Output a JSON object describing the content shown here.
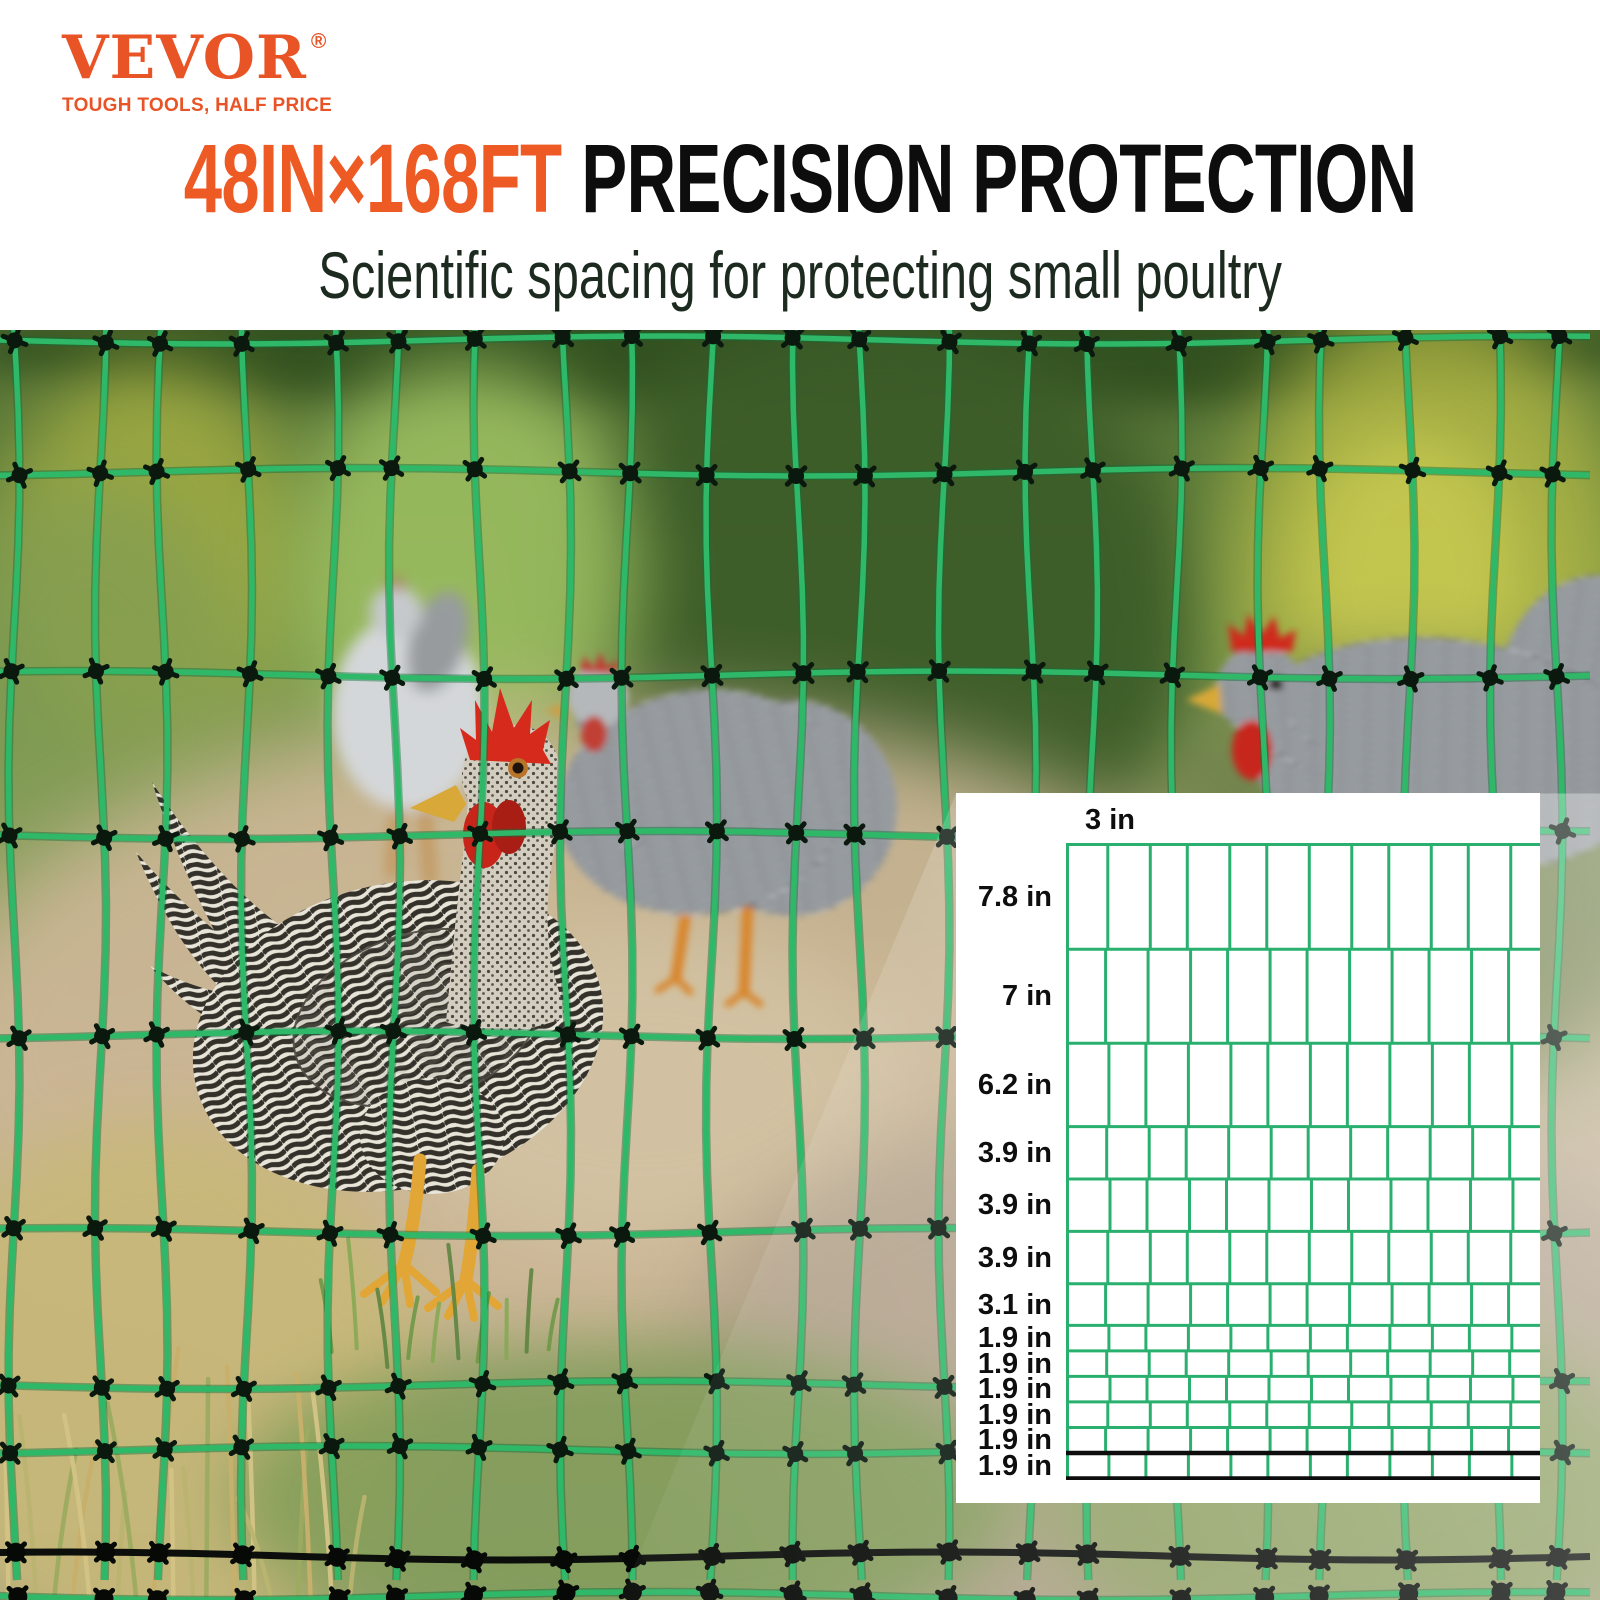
{
  "brand": {
    "name": "VEVOR",
    "registered": "®",
    "tagline": "TOUGH TOOLS, HALF PRICE",
    "color": "#E95426"
  },
  "headline": {
    "highlight": "48IN×168FT",
    "rest": "PRECISION PROTECTION",
    "highlight_color": "#EE5A24",
    "rest_color": "#0D0D0D"
  },
  "subtitle": {
    "text": "Scientific spacing for protecting small poultry",
    "color": "#1D2A1F"
  },
  "diagram": {
    "top_spacing_label": "3 in",
    "row_labels": [
      "7.8 in",
      "7 in",
      "6.2 in",
      "3.9 in",
      "3.9 in",
      "3.9 in",
      "3.1 in",
      "1.9 in",
      "1.9 in",
      "1.9 in",
      "1.9 in",
      "1.9 in",
      "1.9 in"
    ],
    "grid_color": "#29B06E",
    "black_line_color": "#0D0D0D",
    "label_color": "#0E0E0E",
    "panel_bg": "#FFFFFF"
  },
  "chart_data": {
    "type": "table",
    "title": "Poultry netting mesh spacing diagram",
    "units": "in",
    "horizontal_spacing_in": 3,
    "vertical_spacings_in_top_to_bottom": [
      7.8,
      7,
      6.2,
      3.9,
      3.9,
      3.9,
      3.1,
      1.9,
      1.9,
      1.9,
      1.9,
      1.9,
      1.9
    ],
    "tick_labels": [
      "3 in",
      "7.8 in",
      "7 in",
      "6.2 in",
      "3.9 in",
      "3.9 in",
      "3.9 in",
      "3.1 in",
      "1.9 in",
      "1.9 in",
      "1.9 in",
      "1.9 in",
      "1.9 in",
      "1.9 in"
    ]
  },
  "photo": {
    "net_color": "#2FB868",
    "net_shadow_color": "#0D6E3C",
    "knot_color": "#0A180E",
    "black_strand_color": "#0B0E0B"
  }
}
